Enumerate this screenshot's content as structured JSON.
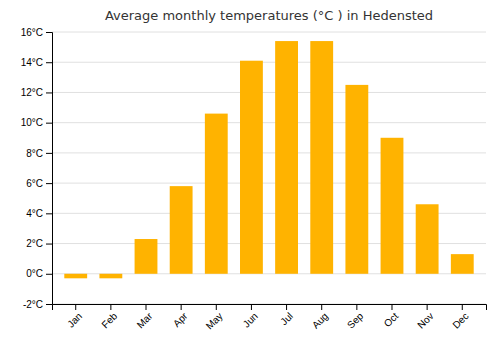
{
  "chart_data": {
    "type": "bar",
    "title": "Average monthly temperatures (°C ) in Hedensted",
    "categories": [
      "Jan",
      "Feb",
      "Mar",
      "Apr",
      "May",
      "Jun",
      "Jul",
      "Aug",
      "Sep",
      "Oct",
      "Nov",
      "Dec"
    ],
    "values": [
      -0.3,
      -0.3,
      2.3,
      5.8,
      10.6,
      14.1,
      15.4,
      15.4,
      12.5,
      9.0,
      4.6,
      1.3
    ],
    "color": "#FFB300",
    "ylim": [
      -2,
      16
    ],
    "yticks": [
      {
        "value": -2,
        "label": "-2°C"
      },
      {
        "value": 0,
        "label": "0°C"
      },
      {
        "value": 2,
        "label": "2°C"
      },
      {
        "value": 4,
        "label": "4°C"
      },
      {
        "value": 6,
        "label": "6°C"
      },
      {
        "value": 8,
        "label": "8°C"
      },
      {
        "value": 10,
        "label": "10°C"
      },
      {
        "value": 12,
        "label": "12°C"
      },
      {
        "value": 14,
        "label": "14°C"
      },
      {
        "value": 16,
        "label": "16°C"
      }
    ],
    "grid": true
  }
}
